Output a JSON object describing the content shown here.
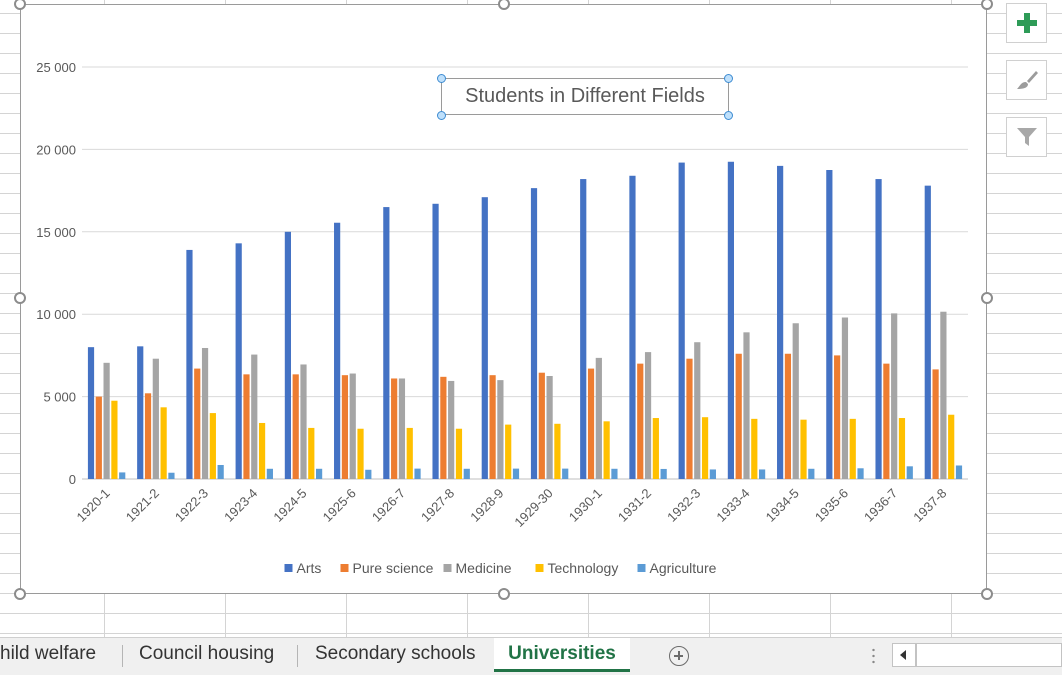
{
  "chart_data": {
    "type": "bar",
    "title": "Students in Different Fields",
    "categories": [
      "1920-1",
      "1921-2",
      "1922-3",
      "1923-4",
      "1924-5",
      "1925-6",
      "1926-7",
      "1927-8",
      "1928-9",
      "1929-30",
      "1930-1",
      "1931-2",
      "1932-3",
      "1933-4",
      "1934-5",
      "1935-6",
      "1936-7",
      "1937-8"
    ],
    "series": [
      {
        "name": "Arts",
        "color": "#4472C4",
        "values": [
          8000,
          8050,
          13900,
          14300,
          15000,
          15550,
          16500,
          16700,
          17100,
          17650,
          18200,
          18400,
          19200,
          19250,
          19000,
          18750,
          18200,
          17800
        ]
      },
      {
        "name": "Pure science",
        "color": "#ED7D31",
        "values": [
          5000,
          5200,
          6700,
          6350,
          6350,
          6300,
          6100,
          6200,
          6300,
          6450,
          6700,
          7000,
          7300,
          7600,
          7600,
          7500,
          7000,
          6650
        ]
      },
      {
        "name": "Medicine",
        "color": "#A5A5A5",
        "values": [
          7050,
          7300,
          7950,
          7550,
          6950,
          6400,
          6100,
          5950,
          6000,
          6250,
          7350,
          7700,
          8300,
          8900,
          9450,
          9800,
          10050,
          10150
        ]
      },
      {
        "name": "Technology",
        "color": "#FFC000",
        "values": [
          4750,
          4350,
          4000,
          3400,
          3100,
          3050,
          3100,
          3050,
          3300,
          3350,
          3500,
          3700,
          3750,
          3650,
          3600,
          3650,
          3700,
          3900
        ]
      },
      {
        "name": "Agriculture",
        "color": "#5B9BD5",
        "values": [
          400,
          380,
          850,
          620,
          620,
          560,
          630,
          620,
          630,
          630,
          620,
          610,
          580,
          580,
          620,
          650,
          770,
          820
        ]
      }
    ],
    "ylim": [
      0,
      25000
    ],
    "yticks": [
      0,
      5000,
      10000,
      15000,
      20000,
      25000
    ],
    "ytick_labels": [
      "0",
      "5 000",
      "10 000",
      "15 000",
      "20 000",
      "25 000"
    ],
    "grid": true,
    "legend_position": "bottom"
  },
  "sheet_tabs": [
    {
      "label": "hild welfare",
      "active": false
    },
    {
      "label": "Council housing",
      "active": false
    },
    {
      "label": "Secondary schools",
      "active": false
    },
    {
      "label": "Universities",
      "active": true
    }
  ],
  "chart_tools": [
    "chart-elements",
    "chart-styles",
    "chart-filters"
  ]
}
